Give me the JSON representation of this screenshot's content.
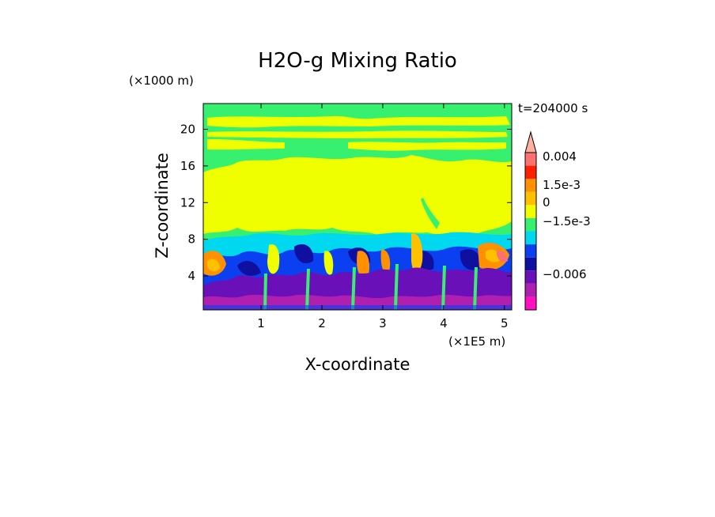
{
  "chart_data": {
    "type": "heatmap",
    "title": "H2O-g Mixing Ratio",
    "time_label": "t=204000 s",
    "xlabel": "X-coordinate",
    "ylabel": "Z-coordinate",
    "x_unit": "(×1E5 m)",
    "y_unit": "(×1000 m)",
    "xlim": [
      0.05,
      5.12
    ],
    "ylim": [
      0.3,
      22.8
    ],
    "x_ticks": [
      1,
      2,
      3,
      4,
      5
    ],
    "y_ticks": [
      4,
      8,
      12,
      16,
      20
    ],
    "colorbar": {
      "levels": [
        {
          "color": "#ff10c0"
        },
        {
          "color": "#b020b0"
        },
        {
          "color": "#6a10b8"
        },
        {
          "color": "#1010a0"
        },
        {
          "color": "#0b40f0"
        },
        {
          "color": "#00d8f0"
        },
        {
          "color": "#38f070"
        },
        {
          "color": "#f0ff00"
        },
        {
          "color": "#ffc000"
        },
        {
          "color": "#ff9000"
        },
        {
          "color": "#ff2000"
        },
        {
          "color": "#ff7070"
        },
        {
          "color": "#ffb0a0"
        }
      ],
      "labels": [
        "0.004",
        "1.5e-3",
        "0",
        "−1.5e-3",
        "−0.006"
      ]
    }
  }
}
